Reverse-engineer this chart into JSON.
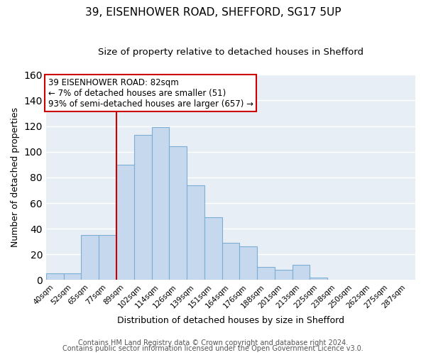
{
  "title_line1": "39, EISENHOWER ROAD, SHEFFORD, SG17 5UP",
  "title_line2": "Size of property relative to detached houses in Shefford",
  "xlabel": "Distribution of detached houses by size in Shefford",
  "ylabel": "Number of detached properties",
  "bar_labels": [
    "40sqm",
    "52sqm",
    "65sqm",
    "77sqm",
    "89sqm",
    "102sqm",
    "114sqm",
    "126sqm",
    "139sqm",
    "151sqm",
    "164sqm",
    "176sqm",
    "188sqm",
    "201sqm",
    "213sqm",
    "225sqm",
    "238sqm",
    "250sqm",
    "262sqm",
    "275sqm",
    "287sqm"
  ],
  "bar_heights": [
    5,
    5,
    35,
    35,
    90,
    113,
    119,
    104,
    74,
    49,
    29,
    26,
    10,
    8,
    12,
    2,
    0,
    0,
    0,
    0,
    0
  ],
  "bar_color": "#c5d8ee",
  "bar_edge_color": "#7bafd4",
  "vline_x_index": 3.5,
  "vline_color": "#cc0000",
  "ylim": [
    0,
    160
  ],
  "yticks": [
    0,
    20,
    40,
    60,
    80,
    100,
    120,
    140,
    160
  ],
  "annotation_title": "39 EISENHOWER ROAD: 82sqm",
  "annotation_line1": "← 7% of detached houses are smaller (51)",
  "annotation_line2": "93% of semi-detached houses are larger (657) →",
  "annotation_box_color": "#ffffff",
  "annotation_box_edge": "#cc0000",
  "footer_line1": "Contains HM Land Registry data © Crown copyright and database right 2024.",
  "footer_line2": "Contains public sector information licensed under the Open Government Licence v3.0.",
  "figure_bg": "#ffffff",
  "plot_bg": "#e8eef5",
  "grid_color": "#ffffff",
  "title_fontsize": 11,
  "subtitle_fontsize": 9.5,
  "axis_label_fontsize": 9,
  "tick_fontsize": 7.5,
  "annotation_fontsize": 8.5,
  "footer_fontsize": 7
}
